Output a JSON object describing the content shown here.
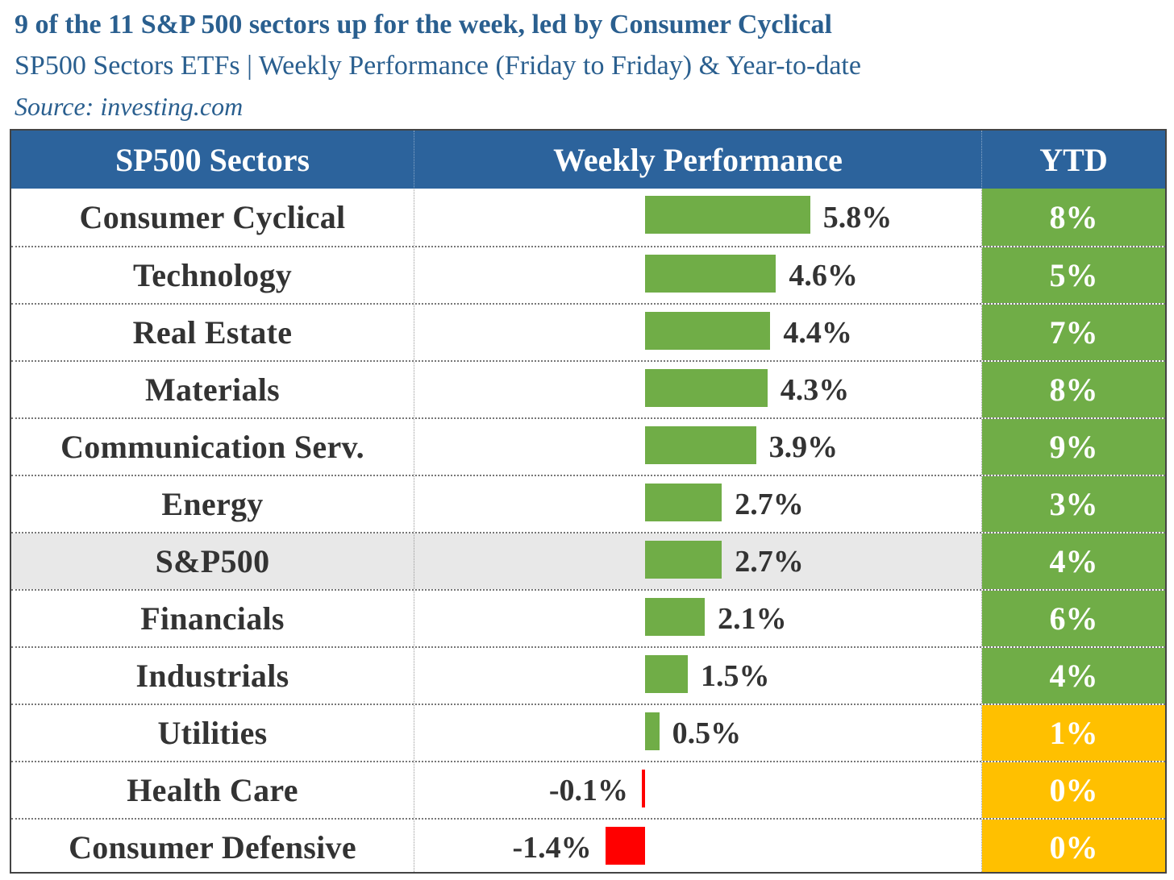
{
  "header": {
    "title": "9 of the 11 S&P 500 sectors up for the week, led by Consumer Cyclical",
    "subtitle": "SP500 Sectors ETFs | Weekly Performance (Friday to Friday) & Year-to-date",
    "source": "Source: investing.com"
  },
  "colors": {
    "header_bg": "#2c639c",
    "positive_bar": "#70ad47",
    "negative_bar": "#ff0000",
    "ytd_green": "#70ad47",
    "ytd_amber": "#ffc000",
    "highlight_row": "#e8e8e8"
  },
  "chart_data": {
    "type": "bar",
    "orientation": "horizontal",
    "columns": [
      "SP500 Sectors",
      "Weekly Performance",
      "YTD"
    ],
    "categories": [
      "Consumer Cyclical",
      "Technology",
      "Real Estate",
      "Materials",
      "Communication Serv.",
      "Energy",
      "S&P500",
      "Financials",
      "Industrials",
      "Utilities",
      "Health Care",
      "Consumer Defensive"
    ],
    "values": [
      5.8,
      4.6,
      4.4,
      4.3,
      3.9,
      2.7,
      2.7,
      2.1,
      1.5,
      0.5,
      -0.1,
      -1.4
    ],
    "value_labels": [
      "5.8%",
      "4.6%",
      "4.4%",
      "4.3%",
      "3.9%",
      "2.7%",
      "2.7%",
      "2.1%",
      "1.5%",
      "0.5%",
      "-0.1%",
      "-1.4%"
    ],
    "ytd_labels": [
      "8%",
      "5%",
      "7%",
      "8%",
      "9%",
      "3%",
      "4%",
      "6%",
      "4%",
      "1%",
      "0%",
      "0%"
    ],
    "ytd_values": [
      8,
      5,
      7,
      8,
      9,
      3,
      4,
      6,
      4,
      1,
      0,
      0
    ],
    "highlight_category": "S&P500"
  }
}
